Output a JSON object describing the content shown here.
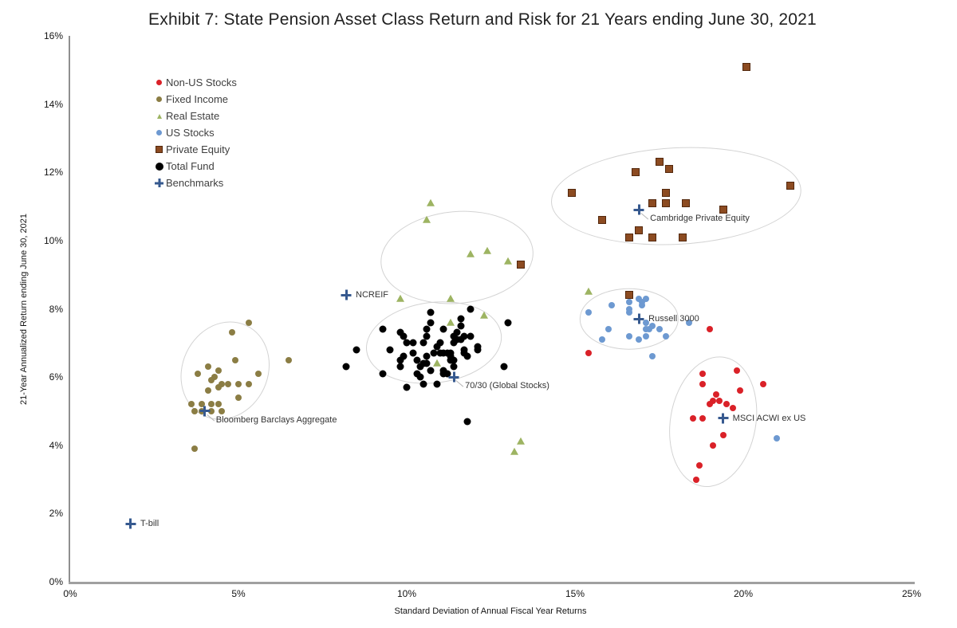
{
  "title": "Exhibit 7: State Pension Asset Class Return and Risk for 21 Years ending June 30, 2021",
  "chart_data": {
    "type": "scatter",
    "title": "Exhibit 7: State Pension Asset Class Return and Risk for 21 Years ending June 30, 2021",
    "xlabel": "Standard Deviation of Annual Fiscal Year Returns",
    "ylabel": "21-Year Annualized Return ending June 30, 2021",
    "xlim": [
      0,
      25
    ],
    "ylim": [
      0,
      16
    ],
    "x_ticks": [
      "0%",
      "5%",
      "10%",
      "15%",
      "20%",
      "25%"
    ],
    "y_ticks": [
      "0%",
      "2%",
      "4%",
      "6%",
      "8%",
      "10%",
      "12%",
      "14%",
      "16%"
    ],
    "grid": false,
    "legend_position": "upper-left-inside",
    "series": [
      {
        "name": "Non-US Stocks",
        "marker": "circle",
        "color": "#DA2128",
        "size": 8,
        "points": [
          [
            19.0,
            7.4
          ],
          [
            15.4,
            6.7
          ],
          [
            19.8,
            6.2
          ],
          [
            18.8,
            6.1
          ],
          [
            18.8,
            5.8
          ],
          [
            20.6,
            5.8
          ],
          [
            19.9,
            5.6
          ],
          [
            19.2,
            5.5
          ],
          [
            19.1,
            5.3
          ],
          [
            19.3,
            5.3
          ],
          [
            19.5,
            5.2
          ],
          [
            19.7,
            5.1
          ],
          [
            19.0,
            5.2
          ],
          [
            18.8,
            4.8
          ],
          [
            18.5,
            4.8
          ],
          [
            19.4,
            4.3
          ],
          [
            19.1,
            4.0
          ],
          [
            18.7,
            3.4
          ],
          [
            18.6,
            3.0
          ]
        ]
      },
      {
        "name": "Fixed Income",
        "marker": "circle",
        "color": "#8B7D44",
        "size": 8,
        "points": [
          [
            5.3,
            7.6
          ],
          [
            4.8,
            7.3
          ],
          [
            4.9,
            6.5
          ],
          [
            6.5,
            6.5
          ],
          [
            4.1,
            6.3
          ],
          [
            4.4,
            6.2
          ],
          [
            3.8,
            6.1
          ],
          [
            5.6,
            6.1
          ],
          [
            4.3,
            6.0
          ],
          [
            4.2,
            5.9
          ],
          [
            4.5,
            5.8
          ],
          [
            4.7,
            5.8
          ],
          [
            5.0,
            5.8
          ],
          [
            5.3,
            5.8
          ],
          [
            4.4,
            5.7
          ],
          [
            4.1,
            5.6
          ],
          [
            5.0,
            5.4
          ],
          [
            3.6,
            5.2
          ],
          [
            3.9,
            5.2
          ],
          [
            4.2,
            5.2
          ],
          [
            4.4,
            5.2
          ],
          [
            3.7,
            5.0
          ],
          [
            3.9,
            5.0
          ],
          [
            4.2,
            5.0
          ],
          [
            4.5,
            5.0
          ],
          [
            3.7,
            3.9
          ]
        ]
      },
      {
        "name": "Real Estate",
        "marker": "triangle",
        "color": "#9DB462",
        "size": 10,
        "points": [
          [
            10.6,
            10.6
          ],
          [
            10.7,
            11.1
          ],
          [
            11.9,
            9.6
          ],
          [
            12.4,
            9.7
          ],
          [
            13.0,
            9.4
          ],
          [
            9.8,
            8.3
          ],
          [
            11.3,
            8.3
          ],
          [
            12.3,
            7.8
          ],
          [
            11.3,
            7.6
          ],
          [
            10.9,
            6.4
          ],
          [
            13.4,
            4.1
          ],
          [
            13.2,
            3.8
          ],
          [
            15.4,
            8.5
          ]
        ]
      },
      {
        "name": "US Stocks",
        "marker": "circle",
        "color": "#6D99D1",
        "size": 8,
        "points": [
          [
            15.4,
            7.9
          ],
          [
            16.1,
            8.1
          ],
          [
            16.6,
            8.2
          ],
          [
            16.6,
            8.0
          ],
          [
            16.9,
            8.3
          ],
          [
            17.0,
            8.2
          ],
          [
            17.1,
            8.3
          ],
          [
            17.0,
            8.1
          ],
          [
            16.6,
            7.9
          ],
          [
            17.1,
            7.6
          ],
          [
            17.1,
            7.4
          ],
          [
            17.2,
            7.4
          ],
          [
            17.3,
            7.5
          ],
          [
            16.0,
            7.4
          ],
          [
            15.8,
            7.1
          ],
          [
            16.6,
            7.2
          ],
          [
            16.9,
            7.1
          ],
          [
            17.1,
            7.2
          ],
          [
            17.5,
            7.4
          ],
          [
            17.7,
            7.2
          ],
          [
            17.3,
            6.6
          ],
          [
            18.4,
            7.6
          ],
          [
            21.0,
            4.2
          ]
        ]
      },
      {
        "name": "Private Equity",
        "marker": "square",
        "color": "#8C4B21",
        "edge": "#53280D",
        "size": 8,
        "points": [
          [
            20.1,
            15.1
          ],
          [
            17.5,
            12.3
          ],
          [
            17.8,
            12.1
          ],
          [
            16.8,
            12.0
          ],
          [
            21.4,
            11.6
          ],
          [
            14.9,
            11.4
          ],
          [
            17.7,
            11.4
          ],
          [
            17.3,
            11.1
          ],
          [
            17.7,
            11.1
          ],
          [
            18.3,
            11.1
          ],
          [
            19.4,
            10.9
          ],
          [
            15.8,
            10.6
          ],
          [
            16.9,
            10.3
          ],
          [
            16.6,
            10.1
          ],
          [
            17.3,
            10.1
          ],
          [
            18.2,
            10.1
          ],
          [
            16.6,
            8.4
          ],
          [
            13.4,
            9.3
          ]
        ]
      },
      {
        "name": "Total Fund",
        "marker": "circle",
        "color": "#000000",
        "size": 9,
        "points": [
          [
            10.7,
            7.9
          ],
          [
            11.9,
            8.0
          ],
          [
            10.7,
            7.6
          ],
          [
            11.1,
            7.4
          ],
          [
            11.6,
            7.7
          ],
          [
            11.6,
            7.5
          ],
          [
            13.0,
            7.6
          ],
          [
            9.3,
            7.4
          ],
          [
            9.8,
            7.3
          ],
          [
            10.6,
            7.4
          ],
          [
            9.9,
            7.2
          ],
          [
            10.0,
            7.0
          ],
          [
            10.2,
            7.0
          ],
          [
            10.5,
            7.0
          ],
          [
            10.6,
            7.2
          ],
          [
            10.9,
            6.9
          ],
          [
            11.0,
            7.0
          ],
          [
            11.4,
            7.2
          ],
          [
            11.5,
            7.3
          ],
          [
            11.5,
            7.1
          ],
          [
            11.6,
            7.1
          ],
          [
            11.7,
            7.2
          ],
          [
            11.9,
            7.2
          ],
          [
            11.4,
            7.0
          ],
          [
            11.7,
            6.8
          ],
          [
            11.7,
            6.7
          ],
          [
            12.1,
            6.9
          ],
          [
            12.1,
            6.8
          ],
          [
            8.5,
            6.8
          ],
          [
            8.2,
            6.3
          ],
          [
            9.5,
            6.8
          ],
          [
            9.8,
            6.5
          ],
          [
            9.9,
            6.6
          ],
          [
            10.2,
            6.7
          ],
          [
            10.3,
            6.5
          ],
          [
            10.4,
            6.3
          ],
          [
            10.5,
            6.4
          ],
          [
            10.6,
            6.4
          ],
          [
            10.6,
            6.6
          ],
          [
            10.8,
            6.7
          ],
          [
            11.0,
            6.7
          ],
          [
            11.1,
            6.7
          ],
          [
            11.2,
            6.7
          ],
          [
            11.3,
            6.6
          ],
          [
            11.3,
            6.7
          ],
          [
            11.3,
            6.5
          ],
          [
            11.4,
            6.5
          ],
          [
            11.8,
            6.6
          ],
          [
            11.4,
            6.3
          ],
          [
            11.1,
            6.2
          ],
          [
            11.2,
            6.1
          ],
          [
            11.1,
            6.1
          ],
          [
            10.7,
            6.2
          ],
          [
            10.3,
            6.1
          ],
          [
            9.8,
            6.3
          ],
          [
            9.3,
            6.1
          ],
          [
            10.4,
            6.0
          ],
          [
            10.5,
            5.8
          ],
          [
            10.0,
            5.7
          ],
          [
            10.9,
            5.8
          ],
          [
            12.9,
            6.3
          ],
          [
            11.8,
            4.7
          ]
        ]
      }
    ],
    "benchmarks": {
      "name": "Benchmarks",
      "marker": "plus",
      "color": "#36598F",
      "size": 13,
      "points": [
        {
          "label": "T-bill",
          "x": 1.8,
          "y": 1.7,
          "label_side": "right"
        },
        {
          "label": "Bloomberg Barclays Aggregate",
          "x": 4.0,
          "y": 5.0,
          "label_side": "below-right"
        },
        {
          "label": "NCREIF",
          "x": 8.2,
          "y": 8.4,
          "label_side": "right"
        },
        {
          "label": "70/30 (Global Stocks)",
          "x": 11.4,
          "y": 6.0,
          "label_side": "below-right"
        },
        {
          "label": "Russell 3000",
          "x": 16.9,
          "y": 7.7,
          "label_side": "right"
        },
        {
          "label": "Cambridge Private Equity",
          "x": 16.9,
          "y": 10.9,
          "label_side": "below-right"
        },
        {
          "label": "MSCI ACWI ex US",
          "x": 19.4,
          "y": 4.8,
          "label_side": "right"
        }
      ]
    },
    "cluster_ellipses": [
      {
        "series": "Fixed Income",
        "cx": 4.6,
        "cy": 6.2,
        "rx": 1.25,
        "ry": 1.45,
        "rotate": 25
      },
      {
        "series": "Total Fund",
        "cx": 10.8,
        "cy": 7.0,
        "rx": 2.0,
        "ry": 1.17,
        "rotate": -7
      },
      {
        "series": "Real Estate",
        "cx": 11.5,
        "cy": 9.5,
        "rx": 2.25,
        "ry": 1.33,
        "rotate": -5
      },
      {
        "series": "US Stocks",
        "cx": 16.6,
        "cy": 7.7,
        "rx": 1.45,
        "ry": 0.87,
        "rotate": 0
      },
      {
        "series": "Private Equity",
        "cx": 18.0,
        "cy": 11.3,
        "rx": 3.7,
        "ry": 1.4,
        "rotate": -3
      },
      {
        "series": "Non-US Stocks",
        "cx": 19.1,
        "cy": 4.7,
        "rx": 1.25,
        "ry": 1.9,
        "rotate": 10
      }
    ]
  }
}
